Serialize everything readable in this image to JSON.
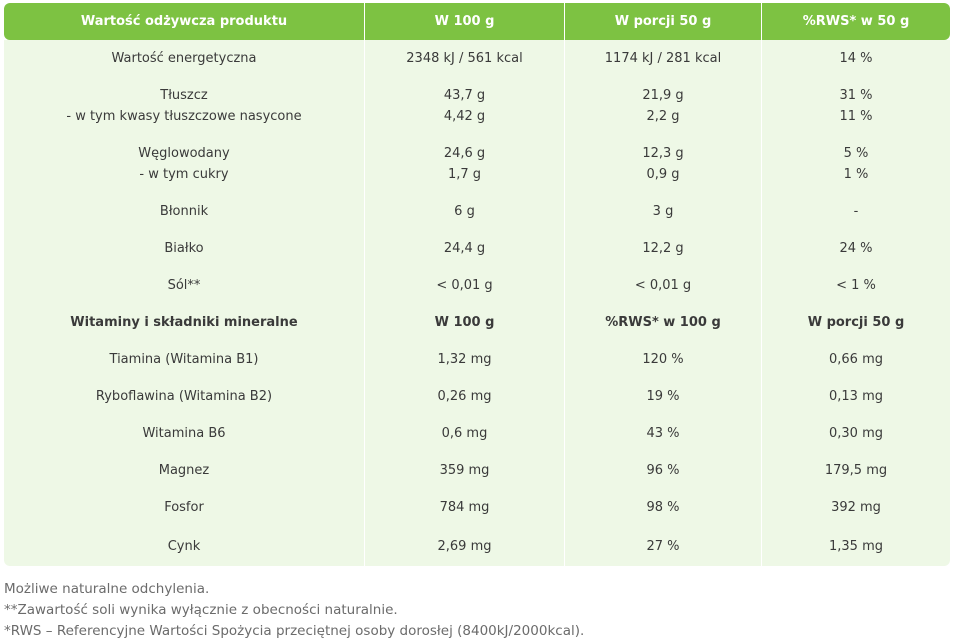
{
  "table": {
    "headers": [
      "Wartość odżywcza produktu",
      "W 100 g",
      "W porcji 50 g",
      "%RWS* w 50 g"
    ],
    "rows": [
      {
        "cells": [
          [
            "Wartość energetyczna"
          ],
          [
            "2348 kJ / 561 kcal"
          ],
          [
            "1174 kJ / 281 kcal"
          ],
          [
            "14 %"
          ]
        ]
      },
      {
        "cells": [
          [
            "Tłuszcz",
            "- w tym kwasy tłuszczowe nasycone"
          ],
          [
            "43,7 g",
            "4,42 g"
          ],
          [
            "21,9 g",
            "2,2 g"
          ],
          [
            "31 %",
            "11 %"
          ]
        ]
      },
      {
        "cells": [
          [
            "Węglowodany",
            "- w tym cukry"
          ],
          [
            "24,6 g",
            "1,7 g"
          ],
          [
            "12,3 g",
            "0,9 g"
          ],
          [
            "5 %",
            "1 %"
          ]
        ]
      },
      {
        "cells": [
          [
            "Błonnik"
          ],
          [
            "6 g"
          ],
          [
            "3 g"
          ],
          [
            "-"
          ]
        ]
      },
      {
        "cells": [
          [
            "Białko"
          ],
          [
            "24,4 g"
          ],
          [
            "12,2 g"
          ],
          [
            "24 %"
          ]
        ]
      },
      {
        "cells": [
          [
            "Sól**"
          ],
          [
            "< 0,01 g"
          ],
          [
            "< 0,01 g"
          ],
          [
            "< 1 %"
          ]
        ]
      },
      {
        "cells": [
          [
            "Witaminy i składniki mineralne"
          ],
          [
            "W 100 g"
          ],
          [
            "%RWS* w 100 g"
          ],
          [
            "W porcji 50 g"
          ]
        ],
        "subheader": true
      },
      {
        "cells": [
          [
            "Tiamina (Witamina B1)"
          ],
          [
            "1,32 mg"
          ],
          [
            "120 %"
          ],
          [
            "0,66 mg"
          ]
        ]
      },
      {
        "cells": [
          [
            "Ryboflawina (Witamina B2)"
          ],
          [
            "0,26 mg"
          ],
          [
            "19 %"
          ],
          [
            "0,13 mg"
          ]
        ]
      },
      {
        "cells": [
          [
            "Witamina B6"
          ],
          [
            "0,6 mg"
          ],
          [
            "43 %"
          ],
          [
            "0,30 mg"
          ]
        ]
      },
      {
        "cells": [
          [
            "Magnez"
          ],
          [
            "359 mg"
          ],
          [
            "96 %"
          ],
          [
            "179,5 mg"
          ]
        ]
      },
      {
        "cells": [
          [
            "Fosfor"
          ],
          [
            "784 mg"
          ],
          [
            "98 %"
          ],
          [
            "392 mg"
          ]
        ]
      },
      {
        "cells": [
          [
            "Cynk"
          ],
          [
            "2,69 mg"
          ],
          [
            "27 %"
          ],
          [
            "1,35 mg"
          ]
        ]
      }
    ]
  },
  "notes": [
    "Możliwe naturalne odchylenia.",
    "**Zawartość soli wynika wyłącznie z obecności naturalnie.",
    "*RWS – Referencyjne Wartości Spożycia przeciętnej osoby dorosłej (8400kJ/2000kcal)."
  ],
  "colors": {
    "header_bg": "#7dc242",
    "row_bg": "#eef8e6",
    "text": "#3a3a3a",
    "notes_text": "#6b6b6b"
  }
}
